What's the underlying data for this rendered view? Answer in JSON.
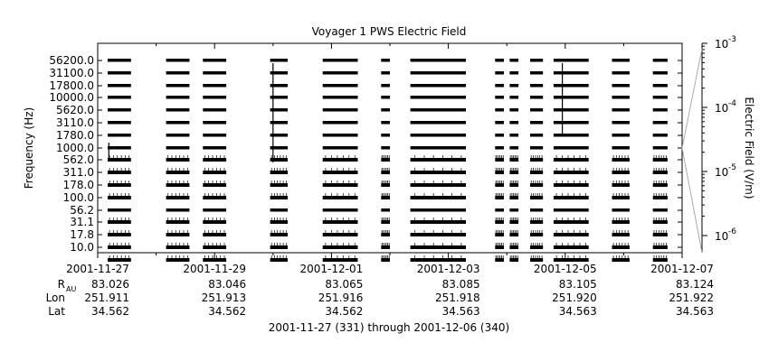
{
  "chart_data": {
    "type": "line",
    "title": "Voyager 1 PWS Electric Field",
    "ylabel": "Frequency (Hz)",
    "y2label": "Electric Field (V/m)",
    "xlabel": "2001-11-27 (331) through 2001-12-06 (340)",
    "frequency_channels": [
      "56200.0",
      "31100.0",
      "17800.0",
      "10000.0",
      "5620.0",
      "3110.0",
      "1780.0",
      "1000.0",
      "562.0",
      "311.0",
      "178.0",
      "100.0",
      "56.2",
      "31.1",
      "17.8",
      "10.0"
    ],
    "x_ticks": [
      "2001-11-27",
      "2001-11-29",
      "2001-12-01",
      "2001-12-03",
      "2001-12-05",
      "2001-12-07"
    ],
    "x_range_days": [
      0,
      10
    ],
    "y2_ticks": [
      {
        "base": "10",
        "exp": "-3"
      },
      {
        "base": "10",
        "exp": "-4"
      },
      {
        "base": "10",
        "exp": "-5"
      },
      {
        "base": "10",
        "exp": "-6"
      }
    ],
    "y2_scale": "log",
    "data_intervals_days": [
      [
        0.17,
        0.57
      ],
      [
        1.17,
        1.57
      ],
      [
        1.8,
        2.2
      ],
      [
        2.95,
        3.25
      ],
      [
        3.85,
        4.45
      ],
      [
        4.85,
        5.0
      ],
      [
        5.35,
        6.3
      ],
      [
        6.8,
        6.95
      ],
      [
        7.05,
        7.2
      ],
      [
        7.4,
        7.62
      ],
      [
        7.8,
        8.4
      ],
      [
        8.8,
        9.1
      ],
      [
        9.5,
        9.75
      ]
    ],
    "spikes_days": [
      3.0,
      7.95,
      0.19
    ],
    "ephemeris": [
      {
        "label": "R",
        "sub": "AU",
        "values": [
          "83.026",
          "83.046",
          "83.065",
          "83.085",
          "83.105",
          "83.124"
        ]
      },
      {
        "label": "Lon",
        "sub": "",
        "values": [
          "251.911",
          "251.913",
          "251.916",
          "251.918",
          "251.920",
          "251.922"
        ]
      },
      {
        "label": "Lat",
        "sub": "",
        "values": [
          "34.562",
          "34.562",
          "34.562",
          "34.563",
          "34.563",
          "34.563"
        ]
      }
    ],
    "grid": false,
    "legend": "none"
  }
}
